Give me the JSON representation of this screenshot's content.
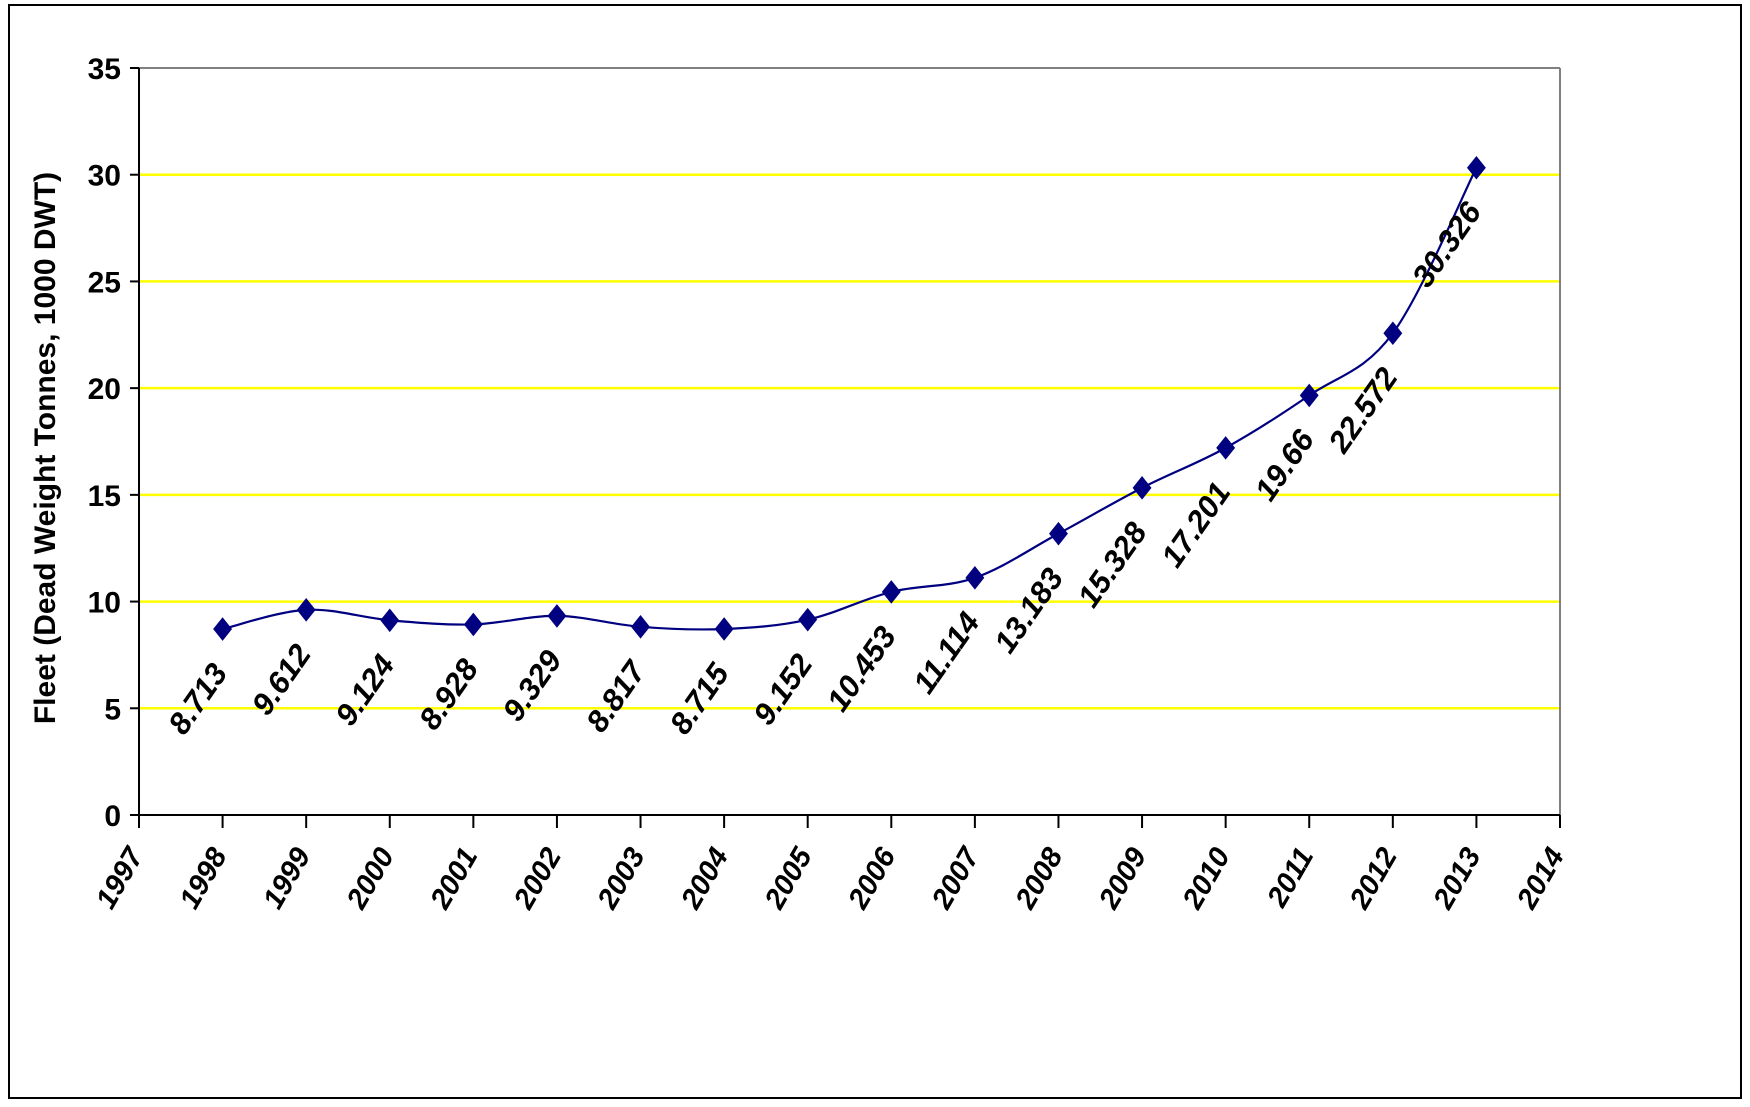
{
  "chart_data": {
    "type": "line",
    "title": "",
    "xlabel": "",
    "ylabel": "Fleet (Dead Weight Tonnes, 1000 DWT)",
    "xlim": [
      1997,
      2014
    ],
    "ylim": [
      0,
      35
    ],
    "x_ticks": [
      1997,
      1998,
      1999,
      2000,
      2001,
      2002,
      2003,
      2004,
      2005,
      2006,
      2007,
      2008,
      2009,
      2010,
      2011,
      2012,
      2013,
      2014
    ],
    "y_ticks": [
      0,
      5,
      10,
      15,
      20,
      25,
      30,
      35
    ],
    "grid": "horizontal",
    "grid_color": "#FFFF00",
    "legend": "none",
    "series": [
      {
        "color": "#000080",
        "marker": "diamond",
        "x": [
          1998,
          1999,
          2000,
          2001,
          2002,
          2003,
          2004,
          2005,
          2006,
          2007,
          2008,
          2009,
          2010,
          2011,
          2012,
          2013
        ],
        "values": [
          8.713,
          9.612,
          9.124,
          8.928,
          9.329,
          8.817,
          8.715,
          9.152,
          10.453,
          11.114,
          13.183,
          15.328,
          17.201,
          19.66,
          22.572,
          30.326
        ],
        "data_labels": [
          "8.713",
          "9.612",
          "9.124",
          "8.928",
          "9.329",
          "8.817",
          "8.715",
          "9.152",
          "10.453",
          "11.114",
          "13.183",
          "15.328",
          "17.201",
          "19.66",
          "22.572",
          "30.326"
        ]
      }
    ]
  }
}
